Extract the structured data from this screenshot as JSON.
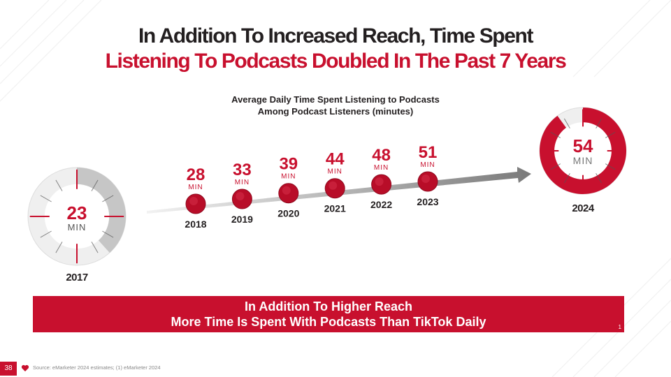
{
  "title": {
    "line1": "In Addition To Increased Reach, Time Spent",
    "line2": "Listening To Podcasts Doubled In The Past 7 Years"
  },
  "colors": {
    "accent": "#c8102e",
    "dark": "#231f20",
    "gray": "#c6c6c6",
    "light_gray": "#efefef"
  },
  "chart_data": {
    "type": "line",
    "title": "Average Daily Time Spent Listening to Podcasts Among Podcast Listeners (minutes)",
    "title_lines": [
      "Average Daily Time Spent Listening to Podcasts",
      "Among Podcast Listeners (minutes)"
    ],
    "unit": "MIN",
    "categories": [
      "2017",
      "2018",
      "2019",
      "2020",
      "2021",
      "2022",
      "2023",
      "2024"
    ],
    "series": [
      {
        "values": [
          23,
          28,
          33,
          39,
          44,
          48,
          51,
          54
        ]
      }
    ]
  },
  "banner": {
    "line1": "In Addition To Higher Reach",
    "line2": "More Time Is Spent With Podcasts Than TikTok Daily",
    "footnote": "1"
  },
  "footer": {
    "page_number": "38",
    "source": "Source: eMarketer 2024 estimates; (1) eMarketer 2024",
    "logo_icon": "iheart-logo-icon"
  }
}
